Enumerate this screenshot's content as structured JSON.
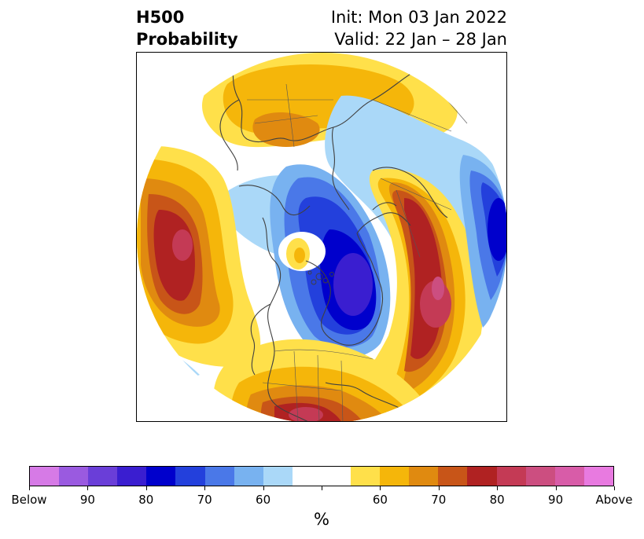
{
  "title": {
    "left_line1": "H500",
    "left_line2": "Probability",
    "right_line1": "Init: Mon 03 Jan 2022",
    "right_line2": "Valid: 22 Jan – 28 Jan"
  },
  "colorbar": {
    "unit": "%",
    "colors": [
      "#d67ae6",
      "#9a5ae0",
      "#6a3ed8",
      "#3a1ed0",
      "#0000cc",
      "#2340dc",
      "#4a78e8",
      "#78b2f0",
      "#aad8f8",
      "#ffffff",
      "#ffffff",
      "#ffe04a",
      "#f5b60a",
      "#e08a10",
      "#c85518",
      "#b02222",
      "#c43a55",
      "#cc4e80",
      "#d85ca8",
      "#e87ae0"
    ],
    "ticks": [
      {
        "label": "Below",
        "index": 0
      },
      {
        "label": "90",
        "index": 2
      },
      {
        "label": "80",
        "index": 4
      },
      {
        "label": "70",
        "index": 6
      },
      {
        "label": "60",
        "index": 8
      },
      {
        "label": "",
        "index": 10
      },
      {
        "label": "60",
        "index": 12
      },
      {
        "label": "70",
        "index": 14
      },
      {
        "label": "80",
        "index": 16
      },
      {
        "label": "90",
        "index": 18
      },
      {
        "label": "Above",
        "index": 20
      }
    ]
  },
  "map": {
    "projection": "north-polar-stereographic",
    "field": "500 hPa height anomaly probability",
    "features": [
      {
        "name": "ridge-north-pacific",
        "category": "above",
        "peak_percent": 90
      },
      {
        "name": "ridge-western-north-america",
        "category": "above",
        "peak_percent": 90
      },
      {
        "name": "ridge-scandinavia-russia",
        "category": "above",
        "peak_percent": 80
      },
      {
        "name": "ridge-southeast-us",
        "category": "above",
        "peak_percent": 90
      },
      {
        "name": "trough-eastern-canada",
        "category": "below",
        "peak_percent": 80
      },
      {
        "name": "trough-eastern-pacific",
        "category": "below",
        "peak_percent": 80
      },
      {
        "name": "ridge-arctic-small",
        "category": "above",
        "peak_percent": 65
      }
    ]
  }
}
